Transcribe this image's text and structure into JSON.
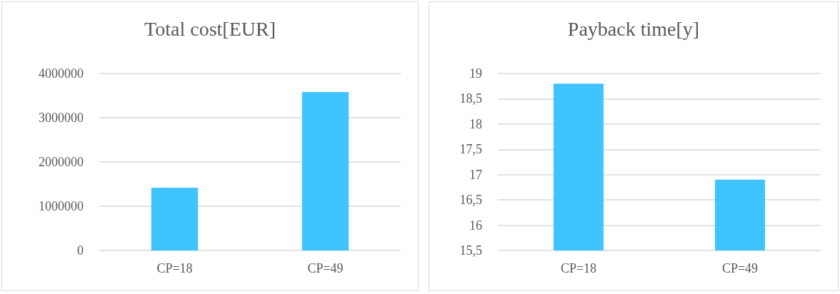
{
  "chart_data": [
    {
      "type": "bar",
      "title": "Total cost[EUR]",
      "categories": [
        "CP=18",
        "CP=49"
      ],
      "values": [
        1420000,
        3580000
      ],
      "color": "#40c4ff",
      "ylim": [
        0,
        4000000
      ],
      "yticks": [
        0,
        1000000,
        2000000,
        3000000,
        4000000
      ],
      "grid": "y"
    },
    {
      "type": "bar",
      "title": "Payback time[y]",
      "categories": [
        "CP=18",
        "CP=49"
      ],
      "values": [
        18.8,
        16.9
      ],
      "color": "#40c4ff",
      "ylim": [
        15.5,
        19
      ],
      "yticks": [
        {
          "value": 15.5,
          "label": "15,5"
        },
        16,
        {
          "value": 16.5,
          "label": "16,5"
        },
        17,
        {
          "value": 17.5,
          "label": "17,5"
        },
        18,
        {
          "value": 18.5,
          "label": "18,5"
        },
        19
      ],
      "grid": "y"
    }
  ]
}
